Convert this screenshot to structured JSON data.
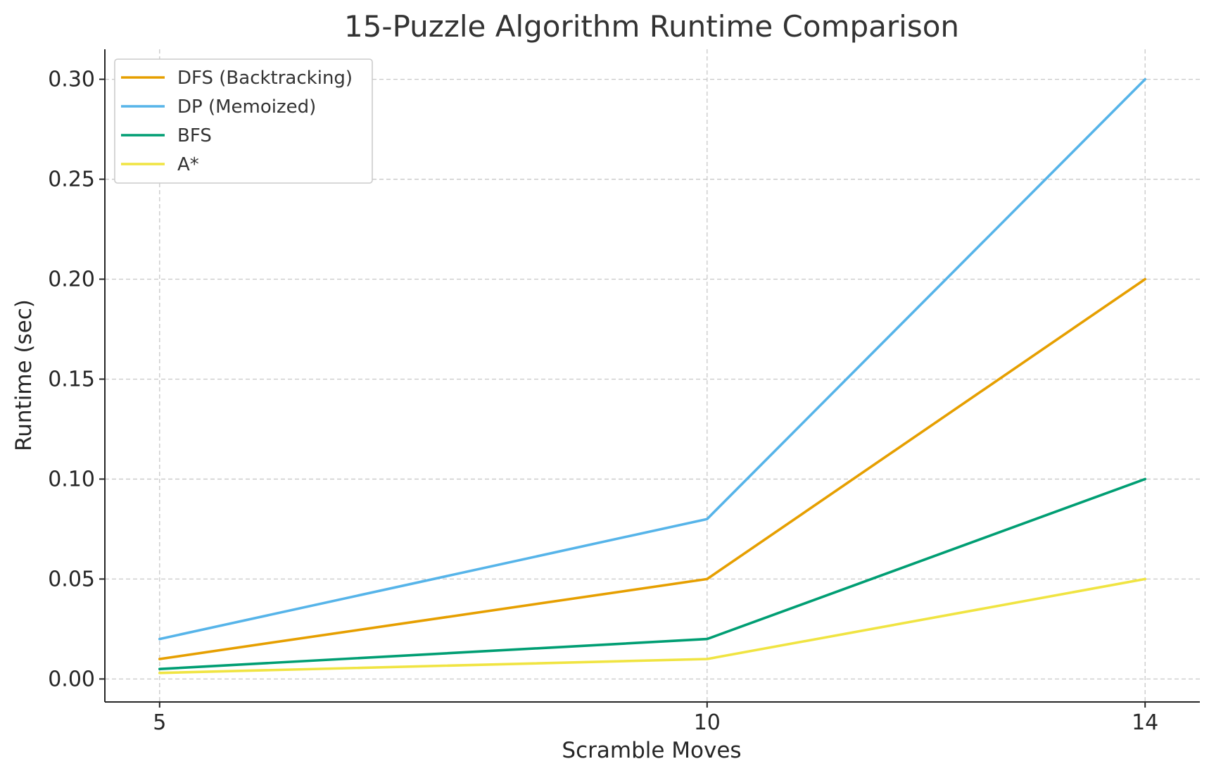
{
  "chart_data": {
    "type": "line",
    "title": "15-Puzzle Algorithm Runtime Comparison",
    "xlabel": "Scramble Moves",
    "ylabel": "Runtime (sec)",
    "x": [
      5,
      10,
      14
    ],
    "x_ticks": [
      "5",
      "10",
      "14"
    ],
    "y_ticks": [
      "0.00",
      "0.05",
      "0.10",
      "0.15",
      "0.20",
      "0.25",
      "0.30"
    ],
    "xlim": [
      4.5,
      14.5
    ],
    "ylim": [
      -0.0115,
      0.315
    ],
    "grid": true,
    "legend_position": "top-left",
    "series": [
      {
        "name": "DFS (Backtracking)",
        "color": "#E69F00",
        "values": [
          0.01,
          0.05,
          0.2
        ]
      },
      {
        "name": "DP (Memoized)",
        "color": "#56B4E9",
        "values": [
          0.02,
          0.08,
          0.3
        ]
      },
      {
        "name": "BFS",
        "color": "#009E73",
        "values": [
          0.005,
          0.02,
          0.1
        ]
      },
      {
        "name": "A*",
        "color": "#F0E442",
        "values": [
          0.003,
          0.01,
          0.05
        ]
      }
    ]
  }
}
